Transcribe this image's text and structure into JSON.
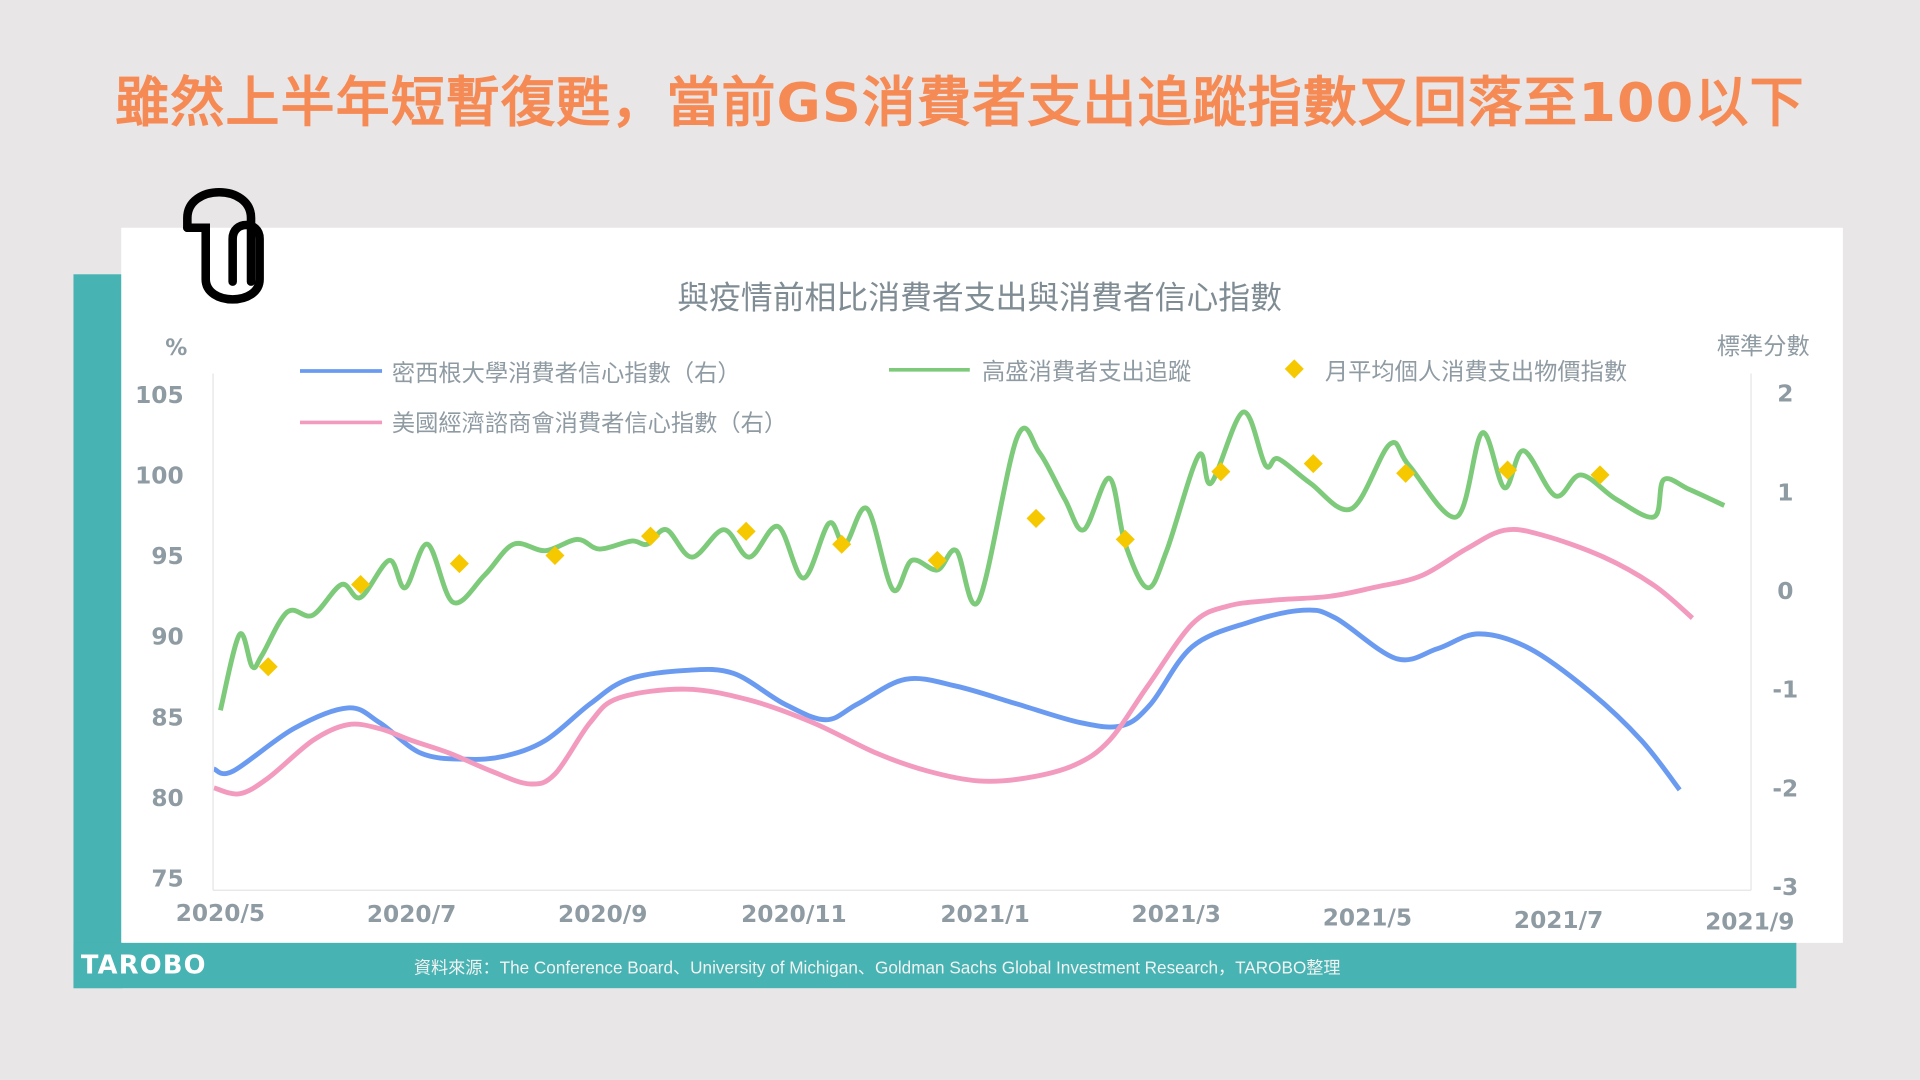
{
  "headline": "雖然上半年短暫復甦，當前GS消費者支出追蹤指數又回落至100以下",
  "footer": {
    "logo": "TAROBO",
    "source": "資料來源：The Conference Board、University of Michigan、Goldman Sachs Global Investment Research，TAROBO整理"
  },
  "icons": [
    "paperclip-icon"
  ],
  "colors": {
    "headline": "#f68a55",
    "accent": "#47b3b3",
    "michigan": "#6b9bf0",
    "gs_tracker": "#7dcb7a",
    "pce": "#f5c800",
    "conference_board": "#f29bbe",
    "axis_text": "#8f9ba3"
  },
  "chart_data": {
    "type": "line",
    "title": "與疫情前相比消費者支出與消費者信心指數",
    "ylabel_left": "%",
    "ylabel_right": "標準分數",
    "ylim_left": [
      75,
      105
    ],
    "ylim_right": [
      -3,
      2
    ],
    "yticks_left": [
      "105",
      "100",
      "95",
      "90",
      "85",
      "80",
      "75"
    ],
    "yticks_right": [
      "2",
      "1",
      "0",
      "-1",
      "-2",
      "-3"
    ],
    "xticks": [
      "2020/5",
      "2020/7",
      "2020/9",
      "2020/11",
      "2021/1",
      "2021/3",
      "2021/5",
      "2021/7",
      "2021/9"
    ],
    "xlim": [
      "2020-05-01",
      "2021-09-01"
    ],
    "grid": false,
    "legend_position": "top",
    "series": [
      {
        "name": "密西根大學消費者信心指數（右）",
        "axis": "right",
        "style": "line",
        "color": "#6b9bf0",
        "points": [
          [
            "2020-04-29",
            -1.81
          ],
          [
            "2020-05-05",
            -1.83
          ],
          [
            "2020-05-24",
            -1.4
          ],
          [
            "2020-06-11",
            -1.19
          ],
          [
            "2020-06-21",
            -1.34
          ],
          [
            "2020-07-04",
            -1.65
          ],
          [
            "2020-07-18",
            -1.71
          ],
          [
            "2020-07-30",
            -1.68
          ],
          [
            "2020-08-13",
            -1.52
          ],
          [
            "2020-08-27",
            -1.15
          ],
          [
            "2020-09-09",
            -0.9
          ],
          [
            "2020-09-27",
            -0.81
          ],
          [
            "2020-10-12",
            -0.84
          ],
          [
            "2020-10-28",
            -1.15
          ],
          [
            "2020-11-11",
            -1.31
          ],
          [
            "2020-11-21",
            -1.15
          ],
          [
            "2020-12-06",
            -0.9
          ],
          [
            "2020-12-22",
            -0.97
          ],
          [
            "2021-01-11",
            -1.15
          ],
          [
            "2021-01-31",
            -1.34
          ],
          [
            "2021-02-14",
            -1.37
          ],
          [
            "2021-02-23",
            -1.15
          ],
          [
            "2021-03-06",
            -0.57
          ],
          [
            "2021-03-24",
            -0.32
          ],
          [
            "2021-04-11",
            -0.2
          ],
          [
            "2021-04-21",
            -0.28
          ],
          [
            "2021-05-10",
            -0.69
          ],
          [
            "2021-05-23",
            -0.59
          ],
          [
            "2021-06-06",
            -0.44
          ],
          [
            "2021-06-22",
            -0.59
          ],
          [
            "2021-07-11",
            -1.03
          ],
          [
            "2021-07-27",
            -1.52
          ],
          [
            "2021-08-09",
            -2.02
          ]
        ]
      },
      {
        "name": "高盛消費者支出追蹤",
        "axis": "left",
        "style": "line",
        "color": "#7dcb7a",
        "points": [
          [
            "2020-05-01",
            85.4
          ],
          [
            "2020-05-07",
            90.1
          ],
          [
            "2020-05-11",
            88.1
          ],
          [
            "2020-05-14",
            88.8
          ],
          [
            "2020-05-22",
            91.5
          ],
          [
            "2020-05-30",
            91.3
          ],
          [
            "2020-06-09",
            93.2
          ],
          [
            "2020-06-15",
            92.4
          ],
          [
            "2020-06-24",
            94.7
          ],
          [
            "2020-06-29",
            93.0
          ],
          [
            "2020-07-06",
            95.7
          ],
          [
            "2020-07-14",
            92.1
          ],
          [
            "2020-07-24",
            93.8
          ],
          [
            "2020-08-03",
            95.7
          ],
          [
            "2020-08-13",
            95.3
          ],
          [
            "2020-08-23",
            96.0
          ],
          [
            "2020-08-30",
            95.4
          ],
          [
            "2020-09-10",
            95.9
          ],
          [
            "2020-09-15",
            95.7
          ],
          [
            "2020-09-21",
            96.6
          ],
          [
            "2020-09-29",
            94.9
          ],
          [
            "2020-10-09",
            96.6
          ],
          [
            "2020-10-17",
            94.9
          ],
          [
            "2020-10-26",
            96.8
          ],
          [
            "2020-11-04",
            93.6
          ],
          [
            "2020-11-12",
            97.0
          ],
          [
            "2020-11-17",
            95.7
          ],
          [
            "2020-11-24",
            97.9
          ],
          [
            "2020-12-02",
            92.9
          ],
          [
            "2020-12-08",
            94.7
          ],
          [
            "2020-12-16",
            94.1
          ],
          [
            "2020-12-22",
            95.3
          ],
          [
            "2020-12-29",
            92.2
          ],
          [
            "2021-01-11",
            102.3
          ],
          [
            "2021-01-18",
            101.4
          ],
          [
            "2021-01-26",
            98.5
          ],
          [
            "2021-02-02",
            96.6
          ],
          [
            "2021-02-10",
            99.8
          ],
          [
            "2021-02-15",
            95.7
          ],
          [
            "2021-02-22",
            93.0
          ],
          [
            "2021-02-28",
            95.3
          ],
          [
            "2021-03-08",
            101.2
          ],
          [
            "2021-03-12",
            99.5
          ],
          [
            "2021-03-22",
            103.9
          ],
          [
            "2021-03-29",
            100.6
          ],
          [
            "2021-04-03",
            101.0
          ],
          [
            "2021-04-13",
            99.5
          ],
          [
            "2021-04-26",
            97.9
          ],
          [
            "2021-05-08",
            101.9
          ],
          [
            "2021-05-14",
            100.6
          ],
          [
            "2021-05-29",
            97.4
          ],
          [
            "2021-06-07",
            102.6
          ],
          [
            "2021-06-14",
            99.2
          ],
          [
            "2021-06-20",
            101.5
          ],
          [
            "2021-06-30",
            98.7
          ],
          [
            "2021-07-08",
            100.0
          ],
          [
            "2021-07-19",
            98.5
          ],
          [
            "2021-07-31",
            97.4
          ],
          [
            "2021-08-04",
            99.7
          ],
          [
            "2021-08-12",
            99.1
          ],
          [
            "2021-08-23",
            98.1
          ]
        ]
      },
      {
        "name": "月平均個人消費支出物價指數",
        "axis": "left",
        "style": "marker",
        "color": "#f5c800",
        "points": [
          [
            "2020-05-16",
            88.1
          ],
          [
            "2020-06-15",
            93.2
          ],
          [
            "2020-07-16",
            94.5
          ],
          [
            "2020-08-16",
            95.0
          ],
          [
            "2020-09-16",
            96.2
          ],
          [
            "2020-10-16",
            96.5
          ],
          [
            "2020-11-16",
            95.7
          ],
          [
            "2020-12-16",
            94.7
          ],
          [
            "2021-01-17",
            97.3
          ],
          [
            "2021-02-15",
            96.0
          ],
          [
            "2021-03-15",
            100.2
          ],
          [
            "2021-04-14",
            100.7
          ],
          [
            "2021-05-13",
            100.1
          ],
          [
            "2021-06-15",
            100.3
          ],
          [
            "2021-07-14",
            100.0
          ]
        ]
      },
      {
        "name": "美國經濟諮商會消費者信心指數（右）",
        "axis": "right",
        "style": "line",
        "color": "#f29bbe",
        "points": [
          [
            "2020-04-29",
            -2.0
          ],
          [
            "2020-05-07",
            -2.06
          ],
          [
            "2020-05-16",
            -1.9
          ],
          [
            "2020-05-30",
            -1.52
          ],
          [
            "2020-06-11",
            -1.36
          ],
          [
            "2020-06-21",
            -1.4
          ],
          [
            "2020-07-01",
            -1.52
          ],
          [
            "2020-07-13",
            -1.65
          ],
          [
            "2020-07-26",
            -1.83
          ],
          [
            "2020-08-08",
            -1.96
          ],
          [
            "2020-08-16",
            -1.86
          ],
          [
            "2020-08-27",
            -1.34
          ],
          [
            "2020-09-06",
            -1.09
          ],
          [
            "2020-09-27",
            -1.0
          ],
          [
            "2020-10-17",
            -1.11
          ],
          [
            "2020-11-07",
            -1.34
          ],
          [
            "2020-11-27",
            -1.65
          ],
          [
            "2020-12-13",
            -1.83
          ],
          [
            "2020-12-29",
            -1.93
          ],
          [
            "2021-01-14",
            -1.9
          ],
          [
            "2021-01-29",
            -1.77
          ],
          [
            "2021-02-10",
            -1.52
          ],
          [
            "2021-02-22",
            -0.97
          ],
          [
            "2021-03-06",
            -0.34
          ],
          [
            "2021-03-17",
            -0.16
          ],
          [
            "2021-04-01",
            -0.1
          ],
          [
            "2021-04-19",
            -0.06
          ],
          [
            "2021-05-03",
            0.03
          ],
          [
            "2021-05-18",
            0.15
          ],
          [
            "2021-06-02",
            0.42
          ],
          [
            "2021-06-14",
            0.61
          ],
          [
            "2021-06-26",
            0.56
          ],
          [
            "2021-07-15",
            0.34
          ],
          [
            "2021-07-31",
            0.05
          ],
          [
            "2021-08-13",
            -0.28
          ]
        ]
      }
    ]
  }
}
